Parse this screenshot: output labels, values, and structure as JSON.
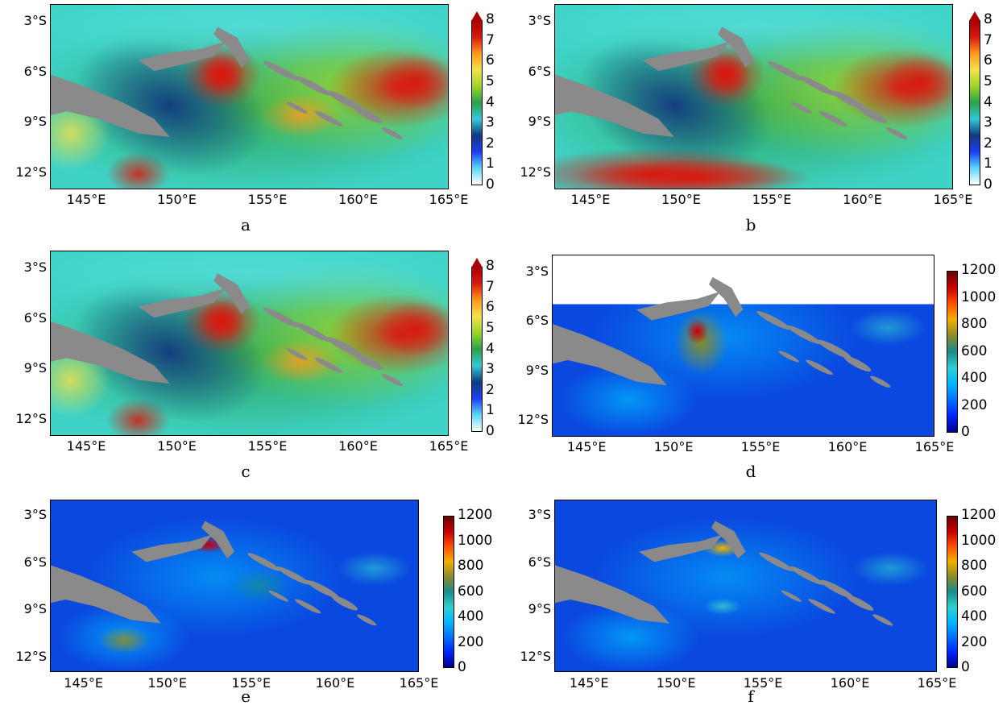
{
  "colors": {
    "land": "#8a8a8a",
    "speed_scale": [
      "#ffffff",
      "#5ad7ff",
      "#1a3df0",
      "#123a80",
      "#34c8d8",
      "#2aa14a",
      "#9bd32a",
      "#f5e24a",
      "#ff9a1a",
      "#d81a10",
      "#a80000"
    ],
    "energy_scale": [
      "#00008c",
      "#0022ff",
      "#0070ff",
      "#00b8ff",
      "#2fcfd0",
      "#1a8c8c",
      "#8a8a2a",
      "#f0b000",
      "#ff5000",
      "#c80000",
      "#6a0000"
    ]
  },
  "y_ticks": [
    "3°S",
    "6°S",
    "9°S",
    "12°S"
  ],
  "x_ticks": [
    "145°E",
    "150°E",
    "155°E",
    "160°E",
    "165°E"
  ],
  "colorbar_speed_ticks": [
    "0",
    "1",
    "2",
    "3",
    "4",
    "5",
    "6",
    "7",
    "8"
  ],
  "colorbar_energy_ticks": [
    "0",
    "200",
    "400",
    "600",
    "800",
    "1000",
    "1200"
  ],
  "panels": [
    {
      "id": "a",
      "label": "a",
      "scale": "speed"
    },
    {
      "id": "b",
      "label": "b",
      "scale": "speed"
    },
    {
      "id": "c",
      "label": "c",
      "scale": "speed"
    },
    {
      "id": "d",
      "label": "d",
      "scale": "energy"
    },
    {
      "id": "e",
      "label": "e",
      "scale": "energy"
    },
    {
      "id": "f",
      "label": "f",
      "scale": "energy"
    }
  ],
  "map_extent": {
    "lon_range": [
      143,
      165
    ],
    "lat_range": [
      -13,
      -2
    ]
  }
}
